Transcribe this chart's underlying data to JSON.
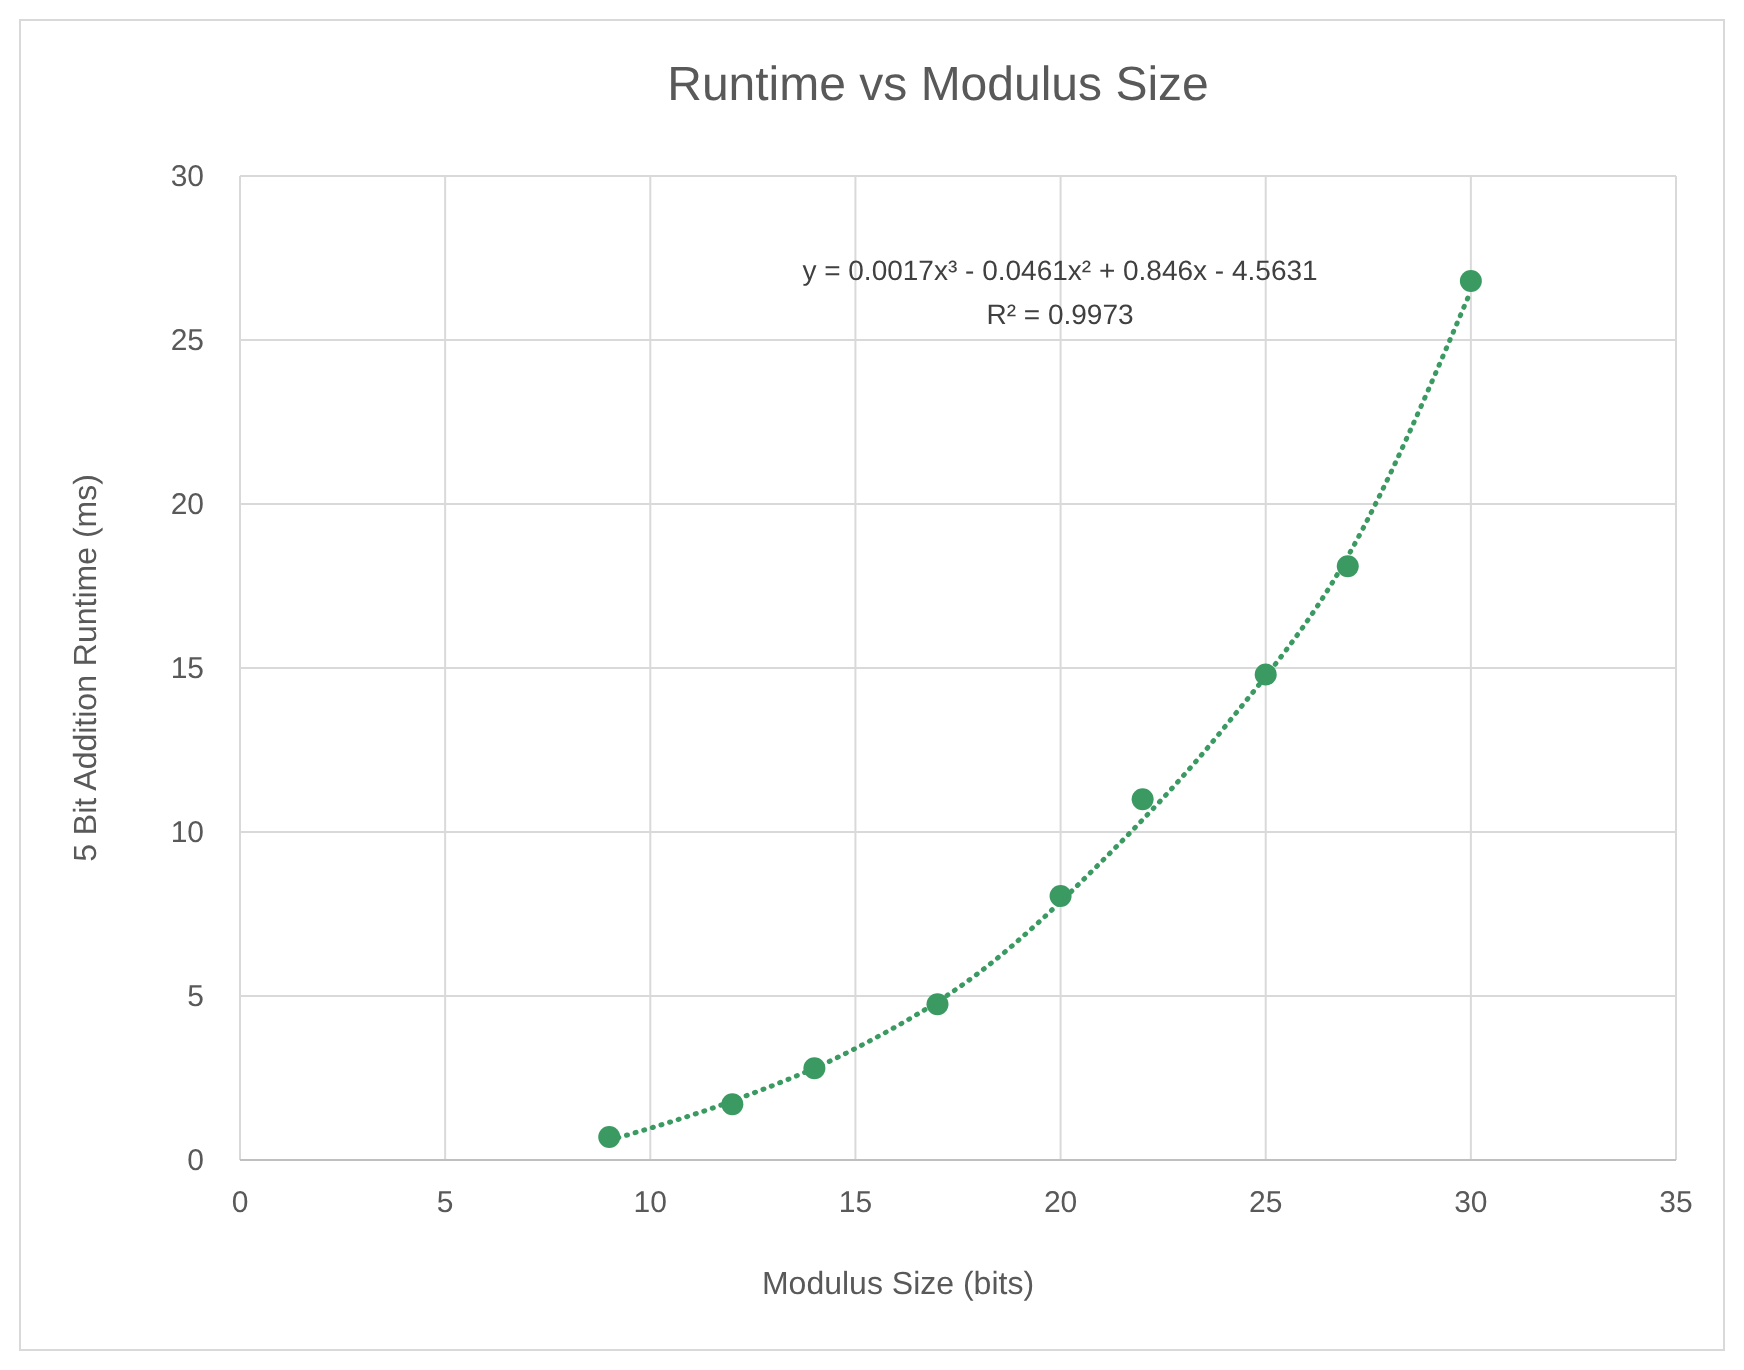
{
  "chart_data": {
    "type": "scatter",
    "title": "Runtime vs Modulus Size",
    "xlabel": "Modulus Size (bits)",
    "ylabel": "5 Bit Addition Runtime (ms)",
    "annotations": [
      "y = 0.0017x³ - 0.0461x² + 0.846x - 4.5631",
      "R² = 0.9973"
    ],
    "series": [
      {
        "color": "#3a9a62",
        "marker": "circle",
        "x": [
          9,
          12,
          14,
          17,
          20,
          22,
          25,
          27,
          30
        ],
        "values": [
          0.7,
          1.7,
          2.8,
          4.75,
          8.05,
          11,
          14.8,
          18.1,
          26.8
        ]
      },
      {
        "type": "line",
        "color": "#3a9a62",
        "line_style": "dotted",
        "marker": "none",
        "x": [
          9,
          12,
          15,
          18,
          21,
          24,
          27,
          30
        ],
        "values": [
          0.6,
          1.8,
          3.4,
          5.7,
          9.1,
          13.2,
          18.4,
          26.5
        ]
      }
    ],
    "xlim": [
      0,
      35
    ],
    "xticks": [
      0,
      5,
      10,
      15,
      20,
      25,
      30,
      35
    ],
    "ylim": [
      0,
      30
    ],
    "yticks": [
      0,
      5,
      10,
      15,
      20,
      25,
      30
    ],
    "grid": true
  }
}
